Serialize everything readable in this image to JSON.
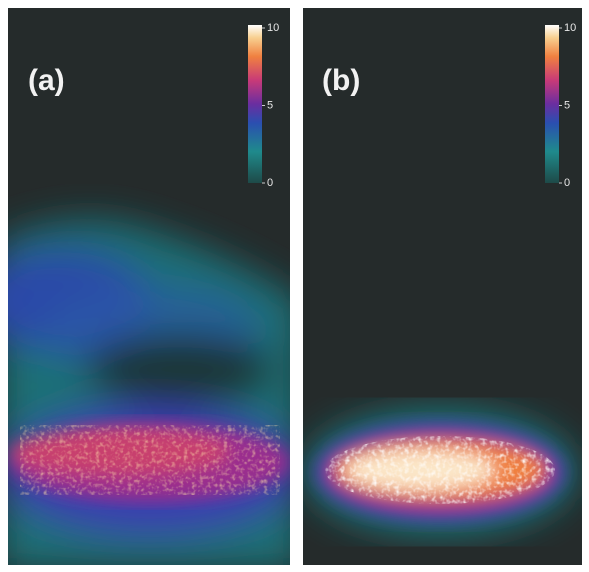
{
  "panels": [
    {
      "label": "(a)",
      "colorbar": {
        "ticks": [
          0,
          5,
          10
        ]
      }
    },
    {
      "label": "(b)",
      "colorbar": {
        "ticks": [
          0,
          5,
          10
        ]
      }
    }
  ]
}
